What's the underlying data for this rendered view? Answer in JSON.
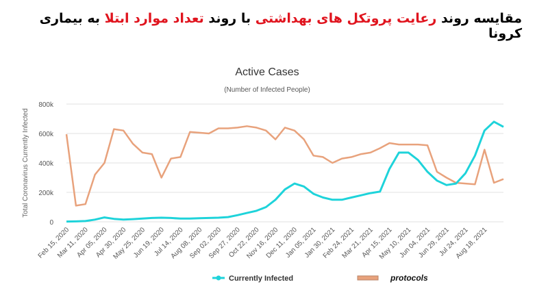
{
  "chart_data": {
    "type": "line",
    "title_parts": [
      {
        "text": "مقایسه روند",
        "color": "#000000"
      },
      {
        "text": "رعایت پروتکل های بهداشتی",
        "color": "#e0141e"
      },
      {
        "text": "با روند",
        "color": "#000000"
      },
      {
        "text": "تعداد موارد ابتلا",
        "color": "#e0141e"
      },
      {
        "text": "به بیماری کرونا",
        "color": "#000000"
      }
    ],
    "title": "Active Cases",
    "subtitle": "(Number of Infected People)",
    "y_label": "Total Coronavirus Currently Infected",
    "categories": [
      "Feb 15, 2020",
      null,
      "Mar 11, 2020",
      null,
      "Apr 05, 2020",
      null,
      "Apr 30, 2020",
      null,
      "May 25, 2020",
      null,
      "Jun 19, 2020",
      null,
      "Jul 14, 2020",
      null,
      "Aug 08, 2020",
      null,
      "Sep 02, 2020",
      null,
      "Sep 27, 2020",
      null,
      "Oct 22, 2020",
      null,
      "Nov 16, 2020",
      null,
      "Dec 11, 2020",
      null,
      "Jan 05, 2021",
      null,
      "Jan 30, 2021",
      null,
      "Feb 24, 2021",
      null,
      "Mar 21, 2021",
      null,
      "Apr 15, 2021",
      null,
      "May 10, 2021",
      null,
      "Jun 04, 2021",
      null,
      "Jun 29, 2021",
      null,
      "Jul 24, 2021",
      null,
      "Aug 18, 2021",
      null,
      null
    ],
    "series": [
      {
        "name": "Currently Infected",
        "color": "#1ed3da",
        "width": 3,
        "values": [
          2000,
          3000,
          5000,
          15000,
          30000,
          20000,
          15000,
          18000,
          22000,
          26000,
          28000,
          26000,
          22000,
          22000,
          24000,
          26000,
          28000,
          32000,
          45000,
          60000,
          75000,
          100000,
          150000,
          220000,
          260000,
          240000,
          190000,
          165000,
          150000,
          150000,
          165000,
          180000,
          195000,
          205000,
          360000,
          470000,
          470000,
          420000,
          340000,
          280000,
          250000,
          260000,
          330000,
          450000,
          620000,
          680000,
          645000
        ]
      },
      {
        "name": "protocols",
        "color": "#e8a27c",
        "width": 2.5,
        "values": [
          595000,
          110000,
          120000,
          320000,
          400000,
          630000,
          620000,
          530000,
          470000,
          460000,
          300000,
          430000,
          440000,
          610000,
          605000,
          600000,
          635000,
          635000,
          640000,
          650000,
          640000,
          620000,
          560000,
          640000,
          620000,
          560000,
          450000,
          440000,
          400000,
          430000,
          440000,
          460000,
          470000,
          500000,
          535000,
          525000,
          525000,
          525000,
          520000,
          340000,
          300000,
          265000,
          260000,
          255000,
          490000,
          265000,
          290000
        ]
      }
    ],
    "ylim": [
      0,
      800000
    ],
    "yticks": [
      0,
      {
        "value": 200000,
        "label": "200k"
      },
      {
        "value": 400000,
        "label": "400k"
      },
      {
        "value": 600000,
        "label": "600k"
      },
      {
        "value": 800000,
        "label": "800k"
      }
    ],
    "grid": true
  }
}
